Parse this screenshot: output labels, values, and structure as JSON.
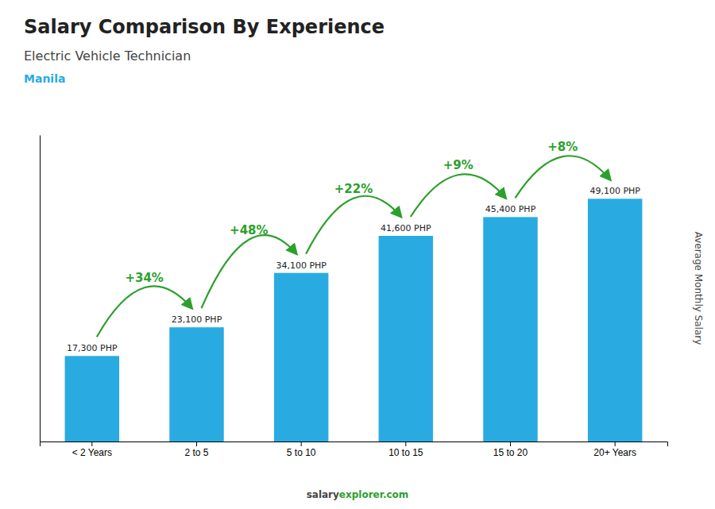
{
  "chart_data": {
    "type": "bar",
    "title": "Salary Comparison By Experience",
    "subtitle": "Electric Vehicle Technician",
    "city": "Manila",
    "ylabel": "Average Monthly Salary",
    "categories": [
      "< 2 Years",
      "2 to 5",
      "5 to 10",
      "10 to 15",
      "15 to 20",
      "20+ Years"
    ],
    "values": [
      17300,
      23100,
      34100,
      41600,
      45400,
      49100
    ],
    "value_labels": [
      "17,300 PHP",
      "23,100 PHP",
      "34,100 PHP",
      "41,600 PHP",
      "45,400 PHP",
      "49,100 PHP"
    ],
    "data_labels": true,
    "color": "#29ABE2",
    "ylim": [
      0,
      62000
    ],
    "tick_labels": "x",
    "grid": false,
    "annotations": {
      "labels": [
        "+34%",
        "+48%",
        "+22%",
        "+9%",
        "+8%"
      ]
    },
    "footer": [
      "salary",
      "explorer.com"
    ]
  }
}
